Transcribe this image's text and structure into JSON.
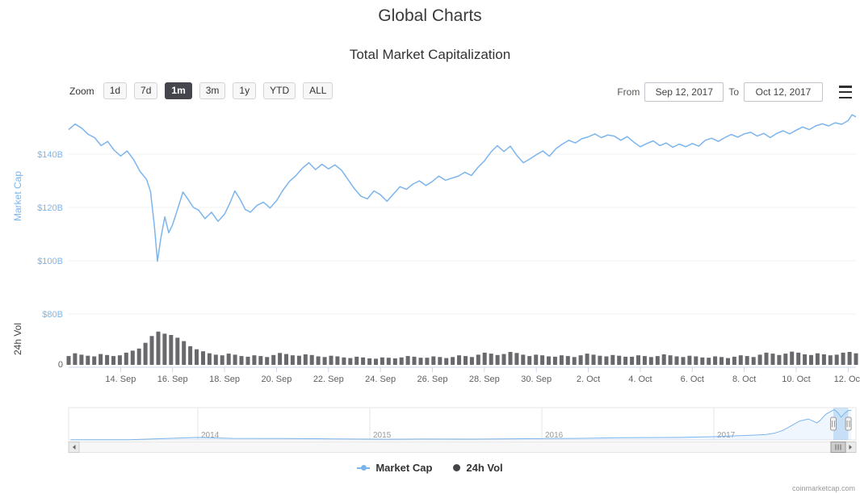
{
  "page": {
    "title": "Global Charts",
    "subtitle": "Total Market Capitalization",
    "credit": "coinmarketcap.com"
  },
  "controls": {
    "zoom_label": "Zoom",
    "zoom_buttons": [
      {
        "label": "1d",
        "selected": false
      },
      {
        "label": "7d",
        "selected": false
      },
      {
        "label": "1m",
        "selected": true
      },
      {
        "label": "3m",
        "selected": false
      },
      {
        "label": "1y",
        "selected": false
      },
      {
        "label": "YTD",
        "selected": false
      },
      {
        "label": "ALL",
        "selected": false
      }
    ],
    "from_label": "From",
    "from_value": "Sep 12, 2017",
    "to_label": "To",
    "to_value": "Oct 12, 2017"
  },
  "legend": [
    {
      "label": "Market Cap",
      "marker": "line-dot",
      "color": "#7cb5ec"
    },
    {
      "label": "24h Vol",
      "marker": "dot",
      "color": "#434348"
    }
  ],
  "colors": {
    "accent_line": "#7cb5ec",
    "volume_bar": "#434348",
    "selected_button_bg": "#45454d",
    "axis_label": "#606060",
    "grid": "#f2f2f2"
  },
  "chart_data": {
    "type": "line",
    "title": "Total Market Capitalization",
    "x_range_label": [
      "Sep 12, 2017",
      "Oct 12, 2017"
    ],
    "y_axis_market_cap": {
      "title": "Market Cap",
      "unit": "USD billions",
      "range": [
        80,
        160
      ],
      "ticks": [
        {
          "label": "$140B",
          "value": 140
        },
        {
          "label": "$120B",
          "value": 120
        },
        {
          "label": "$100B",
          "value": 100
        },
        {
          "label": "$80B",
          "value": 80
        }
      ]
    },
    "y_axis_volume": {
      "title": "24h Vol",
      "unit": "USD billions",
      "ticks": [
        {
          "label": "0",
          "value": 0
        }
      ]
    },
    "x_ticks": [
      {
        "label": "14. Sep",
        "day": 2
      },
      {
        "label": "16. Sep",
        "day": 4
      },
      {
        "label": "18. Sep",
        "day": 6
      },
      {
        "label": "20. Sep",
        "day": 8
      },
      {
        "label": "22. Sep",
        "day": 10
      },
      {
        "label": "24. Sep",
        "day": 12
      },
      {
        "label": "26. Sep",
        "day": 14
      },
      {
        "label": "28. Sep",
        "day": 16
      },
      {
        "label": "30. Sep",
        "day": 18
      },
      {
        "label": "2. Oct",
        "day": 20
      },
      {
        "label": "4. Oct",
        "day": 22
      },
      {
        "label": "6. Oct",
        "day": 24
      },
      {
        "label": "8. Oct",
        "day": 26
      },
      {
        "label": "10. Oct",
        "day": 28
      },
      {
        "label": "12. Oct",
        "day": 30
      }
    ],
    "series": [
      {
        "name": "Market Cap",
        "type": "line",
        "color": "#7cb5ec",
        "unit": "USD billion",
        "points_day_value": [
          [
            0,
            149.2
          ],
          [
            0.25,
            151.3
          ],
          [
            0.5,
            149.8
          ],
          [
            0.75,
            147.5
          ],
          [
            1,
            146.2
          ],
          [
            1.25,
            143.2
          ],
          [
            1.5,
            144.8
          ],
          [
            1.75,
            141.5
          ],
          [
            2,
            139.3
          ],
          [
            2.25,
            141.2
          ],
          [
            2.5,
            138.0
          ],
          [
            2.75,
            133.5
          ],
          [
            3,
            130.5
          ],
          [
            3.15,
            126.0
          ],
          [
            3.3,
            113.0
          ],
          [
            3.42,
            99.8
          ],
          [
            3.55,
            108.5
          ],
          [
            3.7,
            116.5
          ],
          [
            3.85,
            110.5
          ],
          [
            4,
            113.5
          ],
          [
            4.2,
            119.5
          ],
          [
            4.4,
            125.8
          ],
          [
            4.6,
            123.0
          ],
          [
            4.8,
            120.0
          ],
          [
            5,
            119.0
          ],
          [
            5.25,
            115.8
          ],
          [
            5.5,
            118.2
          ],
          [
            5.75,
            114.8
          ],
          [
            6,
            117.5
          ],
          [
            6.2,
            121.5
          ],
          [
            6.4,
            126.2
          ],
          [
            6.6,
            123.0
          ],
          [
            6.8,
            119.2
          ],
          [
            7,
            118.2
          ],
          [
            7.25,
            120.8
          ],
          [
            7.5,
            122.0
          ],
          [
            7.75,
            119.8
          ],
          [
            8,
            122.5
          ],
          [
            8.25,
            126.5
          ],
          [
            8.5,
            129.8
          ],
          [
            8.75,
            132.0
          ],
          [
            9,
            134.8
          ],
          [
            9.25,
            136.8
          ],
          [
            9.5,
            134.2
          ],
          [
            9.75,
            136.2
          ],
          [
            10,
            134.5
          ],
          [
            10.25,
            136.0
          ],
          [
            10.5,
            134.0
          ],
          [
            10.75,
            130.5
          ],
          [
            11,
            127.0
          ],
          [
            11.25,
            124.2
          ],
          [
            11.5,
            123.2
          ],
          [
            11.75,
            126.2
          ],
          [
            12,
            124.8
          ],
          [
            12.25,
            122.3
          ],
          [
            12.5,
            125.0
          ],
          [
            12.75,
            127.8
          ],
          [
            13,
            126.8
          ],
          [
            13.25,
            128.8
          ],
          [
            13.5,
            130.0
          ],
          [
            13.75,
            128.2
          ],
          [
            14,
            129.8
          ],
          [
            14.25,
            131.8
          ],
          [
            14.5,
            130.2
          ],
          [
            14.75,
            131.0
          ],
          [
            15,
            131.8
          ],
          [
            15.25,
            133.2
          ],
          [
            15.5,
            132.0
          ],
          [
            15.75,
            135.0
          ],
          [
            16,
            137.5
          ],
          [
            16.25,
            140.8
          ],
          [
            16.5,
            143.2
          ],
          [
            16.75,
            141.0
          ],
          [
            17,
            143.0
          ],
          [
            17.25,
            139.5
          ],
          [
            17.5,
            136.8
          ],
          [
            17.75,
            138.2
          ],
          [
            18,
            139.8
          ],
          [
            18.25,
            141.2
          ],
          [
            18.5,
            139.2
          ],
          [
            18.75,
            142.0
          ],
          [
            19,
            143.8
          ],
          [
            19.25,
            145.2
          ],
          [
            19.5,
            144.2
          ],
          [
            19.75,
            145.8
          ],
          [
            20,
            146.5
          ],
          [
            20.25,
            147.6
          ],
          [
            20.5,
            146.2
          ],
          [
            20.75,
            147.2
          ],
          [
            21,
            146.8
          ],
          [
            21.25,
            145.2
          ],
          [
            21.5,
            146.6
          ],
          [
            21.75,
            144.5
          ],
          [
            22,
            142.8
          ],
          [
            22.25,
            144.0
          ],
          [
            22.5,
            145.0
          ],
          [
            22.75,
            143.2
          ],
          [
            23,
            144.2
          ],
          [
            23.25,
            142.6
          ],
          [
            23.5,
            143.8
          ],
          [
            23.75,
            142.8
          ],
          [
            24,
            144.0
          ],
          [
            24.25,
            143.0
          ],
          [
            24.5,
            145.2
          ],
          [
            24.75,
            146.0
          ],
          [
            25,
            144.8
          ],
          [
            25.25,
            146.2
          ],
          [
            25.5,
            147.4
          ],
          [
            25.75,
            146.4
          ],
          [
            26,
            147.6
          ],
          [
            26.25,
            148.2
          ],
          [
            26.5,
            146.8
          ],
          [
            26.75,
            147.8
          ],
          [
            27,
            146.2
          ],
          [
            27.25,
            147.8
          ],
          [
            27.5,
            148.8
          ],
          [
            27.75,
            147.6
          ],
          [
            28,
            149.0
          ],
          [
            28.25,
            150.2
          ],
          [
            28.5,
            149.2
          ],
          [
            28.75,
            150.6
          ],
          [
            29,
            151.4
          ],
          [
            29.25,
            150.6
          ],
          [
            29.5,
            151.8
          ],
          [
            29.75,
            151.2
          ],
          [
            30,
            152.6
          ],
          [
            30.15,
            154.8
          ],
          [
            30.3,
            154.0
          ]
        ]
      },
      {
        "name": "24h Vol",
        "type": "column",
        "color": "#434348",
        "unit": "USD billion",
        "interval_days": 0.25,
        "values": [
          2.6,
          3.4,
          3.0,
          2.7,
          2.5,
          3.2,
          2.9,
          2.6,
          2.8,
          3.6,
          4.2,
          4.8,
          6.5,
          8.5,
          9.8,
          9.2,
          8.8,
          8.0,
          7.0,
          5.5,
          4.6,
          4.0,
          3.4,
          3.0,
          2.8,
          3.3,
          3.0,
          2.6,
          2.4,
          2.8,
          2.6,
          2.3,
          2.9,
          3.5,
          3.2,
          2.8,
          2.7,
          3.1,
          2.9,
          2.5,
          2.3,
          2.7,
          2.5,
          2.2,
          2.0,
          2.4,
          2.2,
          1.9,
          1.8,
          2.2,
          2.1,
          1.9,
          2.2,
          2.6,
          2.4,
          2.1,
          2.1,
          2.5,
          2.3,
          2.0,
          2.3,
          2.8,
          2.6,
          2.3,
          3.0,
          3.6,
          3.3,
          2.9,
          3.2,
          3.8,
          3.5,
          3.0,
          2.6,
          3.0,
          2.8,
          2.5,
          2.4,
          2.8,
          2.6,
          2.3,
          2.8,
          3.3,
          3.0,
          2.7,
          2.5,
          2.9,
          2.7,
          2.4,
          2.4,
          2.8,
          2.6,
          2.3,
          2.6,
          3.1,
          2.8,
          2.5,
          2.3,
          2.7,
          2.5,
          2.2,
          2.1,
          2.5,
          2.3,
          2.0,
          2.4,
          2.8,
          2.6,
          2.3,
          3.0,
          3.6,
          3.3,
          2.9,
          3.3,
          3.9,
          3.6,
          3.1,
          2.9,
          3.4,
          3.1,
          2.8,
          3.0,
          3.6,
          3.8,
          3.4
        ]
      }
    ],
    "navigator": {
      "year_ticks": [
        {
          "label": "2014",
          "year": 2014
        },
        {
          "label": "2015",
          "year": 2015
        },
        {
          "label": "2016",
          "year": 2016
        },
        {
          "label": "2017",
          "year": 2017
        }
      ],
      "points_year_value": [
        [
          2013.26,
          1.2
        ],
        [
          2013.6,
          1.4
        ],
        [
          2013.9,
          10
        ],
        [
          2014.0,
          13
        ],
        [
          2014.2,
          8
        ],
        [
          2014.5,
          7.5
        ],
        [
          2014.8,
          5.5
        ],
        [
          2015.0,
          4.3
        ],
        [
          2015.1,
          3.8
        ],
        [
          2015.3,
          4.5
        ],
        [
          2015.6,
          4.2
        ],
        [
          2015.9,
          6.5
        ],
        [
          2016.0,
          7
        ],
        [
          2016.2,
          8
        ],
        [
          2016.5,
          12
        ],
        [
          2016.8,
          13
        ],
        [
          2017.0,
          17
        ],
        [
          2017.1,
          21
        ],
        [
          2017.2,
          24
        ],
        [
          2017.3,
          28
        ],
        [
          2017.35,
          35
        ],
        [
          2017.4,
          50
        ],
        [
          2017.45,
          75
        ],
        [
          2017.5,
          100
        ],
        [
          2017.55,
          110
        ],
        [
          2017.6,
          90
        ],
        [
          2017.62,
          105
        ],
        [
          2017.65,
          135
        ],
        [
          2017.7,
          160
        ],
        [
          2017.72,
          145
        ],
        [
          2017.74,
          120
        ],
        [
          2017.76,
          140
        ],
        [
          2017.78,
          155
        ],
        [
          2017.8,
          157
        ]
      ],
      "selection_years": [
        2017.695,
        2017.782
      ]
    }
  }
}
